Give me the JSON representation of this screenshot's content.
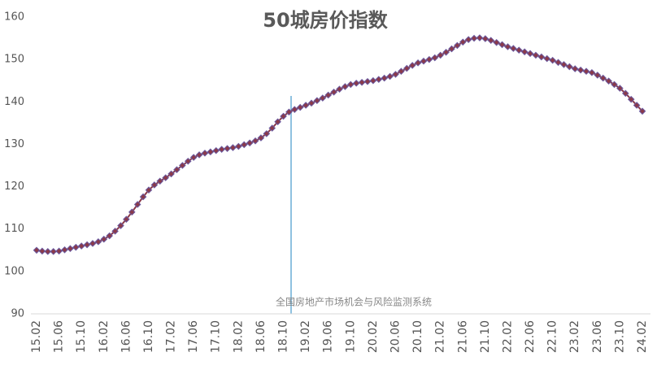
{
  "chart_data": {
    "type": "line",
    "title": "50城房价指数",
    "watermark": "全国房地产市场机会与风险监测系统",
    "categories": [
      "15.02",
      null,
      null,
      null,
      "15.06",
      null,
      null,
      null,
      "15.10",
      null,
      null,
      null,
      "16.02",
      null,
      null,
      null,
      "16.06",
      null,
      null,
      null,
      "16.10",
      null,
      null,
      null,
      "17.02",
      null,
      null,
      null,
      "17.06",
      null,
      null,
      null,
      "17.10",
      null,
      null,
      null,
      "18.02",
      null,
      null,
      null,
      "18.06",
      null,
      null,
      null,
      "18.10",
      null,
      null,
      null,
      "19.02",
      null,
      null,
      null,
      "19.06",
      null,
      null,
      null,
      "19.10",
      null,
      null,
      null,
      "20.02",
      null,
      null,
      null,
      "20.06",
      null,
      null,
      null,
      "20.10",
      null,
      null,
      null,
      "21.02",
      null,
      null,
      null,
      "21.06",
      null,
      null,
      null,
      "21.10",
      null,
      null,
      null,
      "22.02",
      null,
      null,
      null,
      "22.06",
      null,
      null,
      null,
      "22.10",
      null,
      null,
      null,
      "23.02",
      null,
      null,
      null,
      "23.06",
      null,
      null,
      null,
      "23.10",
      null,
      null,
      null,
      "24.02"
    ],
    "series": [
      {
        "name": "50城房价指数",
        "color": "#8b3a4a",
        "marker_edge": "#6a5aa0",
        "values": [
          105,
          104.8,
          104.7,
          104.7,
          104.8,
          105.1,
          105.4,
          105.7,
          106,
          106.3,
          106.6,
          107,
          107.6,
          108.4,
          109.5,
          110.8,
          112.3,
          114,
          115.8,
          117.6,
          119.2,
          120.4,
          121.3,
          122.1,
          123,
          124,
          125,
          126,
          126.9,
          127.5,
          127.9,
          128.2,
          128.5,
          128.8,
          129,
          129.2,
          129.5,
          129.9,
          130.3,
          130.8,
          131.5,
          132.5,
          133.8,
          135.3,
          136.6,
          137.6,
          138.2,
          138.7,
          139.2,
          139.7,
          140.3,
          140.9,
          141.6,
          142.3,
          143,
          143.6,
          144.1,
          144.4,
          144.6,
          144.8,
          145,
          145.3,
          145.6,
          146,
          146.5,
          147.2,
          147.9,
          148.6,
          149.2,
          149.6,
          150,
          150.4,
          151,
          151.7,
          152.5,
          153.3,
          154.1,
          154.7,
          155,
          155.1,
          154.9,
          154.5,
          154,
          153.5,
          153,
          152.6,
          152.2,
          151.8,
          151.4,
          151,
          150.6,
          150.2,
          149.8,
          149.3,
          148.8,
          148.3,
          147.8,
          147.5,
          147.2,
          146.9,
          146.3,
          145.6,
          144.9,
          144.1,
          143.2,
          142,
          140.6,
          139.2,
          137.8
        ]
      }
    ],
    "ylim": [
      90,
      160
    ],
    "yticks": [
      90,
      100,
      110,
      120,
      130,
      140,
      150,
      160
    ],
    "grid": false
  }
}
